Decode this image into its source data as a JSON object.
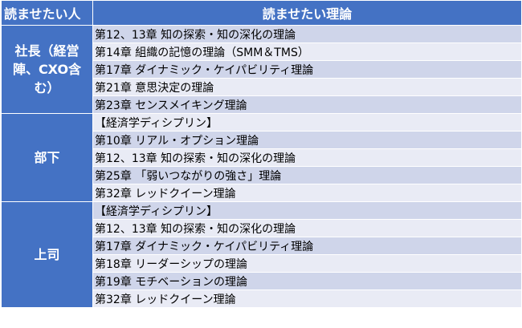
{
  "table": {
    "headers": {
      "reader": "読ませたい人",
      "theory": "読ませたい理論"
    },
    "groups": [
      {
        "label": "社長（経営陣、CXO含む）",
        "items": [
          "第12、13章 知の探索・知の深化の理論",
          "第14章 組織の記憶の理論（SMM＆TMS）",
          "第17章 ダイナミック・ケイパビリティ理論",
          "第21章 意思決定の理論",
          "第23章 センスメイキング理論"
        ]
      },
      {
        "label": "部下",
        "items": [
          "【経済学ディシプリン】",
          "第10章 リアル・オプション理論",
          "第12、13章 知の探索・知の深化の理論",
          "第25章 「弱いつながりの強さ」理論",
          "第32章 レッドクイーン理論"
        ]
      },
      {
        "label": "上司",
        "items": [
          "【経済学ディシプリン】",
          "第12、13章 知の探索・知の深化の理論",
          "第17章 ダイナミック・ケイパビリティ理論",
          "第18章 リーダーシップの理論",
          "第19章 モチベーションの理論",
          "第32章 レッドクイーン理論"
        ]
      }
    ]
  }
}
